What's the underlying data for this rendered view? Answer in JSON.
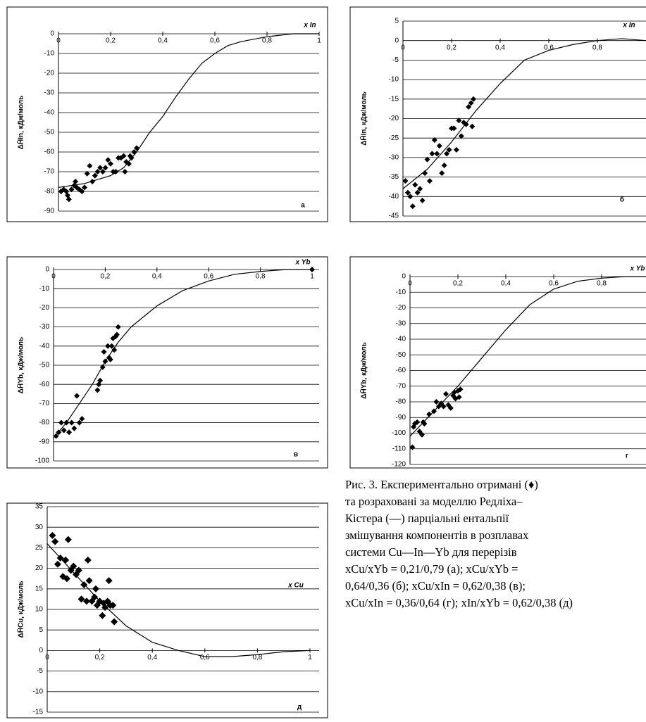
{
  "chart_data": [
    {
      "type": "scatter",
      "ylabel": "ΔH̄In, кДж/моль",
      "xlabel": "x In",
      "panel_label": "а",
      "xlim": [
        0,
        1
      ],
      "ylim": [
        -90,
        0
      ],
      "xticks": [
        0,
        {
          "value": 0.2,
          "label": "0,2"
        },
        {
          "value": 0.4,
          "label": "0,4"
        },
        {
          "value": 0.6,
          "label": "0,6"
        },
        {
          "value": 0.8,
          "label": "0,8"
        },
        1
      ],
      "yticks": [
        0,
        -10,
        -20,
        -30,
        -40,
        -50,
        -60,
        -70,
        -80,
        -90
      ],
      "grid": true,
      "series": [
        {
          "type": "scatter",
          "color": "#000000",
          "x": [
            0.01,
            0.02,
            0.03,
            0.035,
            0.04,
            0.05,
            0.06,
            0.065,
            0.07,
            0.08,
            0.09,
            0.1,
            0.11,
            0.12,
            0.13,
            0.14,
            0.15,
            0.16,
            0.17,
            0.18,
            0.19,
            0.2,
            0.21,
            0.22,
            0.23,
            0.24,
            0.25,
            0.255,
            0.26,
            0.27,
            0.275,
            0.28,
            0.29,
            0.3
          ],
          "values": [
            -80,
            -79,
            -80,
            -82,
            -84,
            -79,
            -77,
            -75,
            -78,
            -79,
            -80,
            -78,
            -71,
            -67,
            -75,
            -72,
            -70,
            -68,
            -70,
            -68,
            -64,
            -66,
            -70,
            -70,
            -63,
            -63,
            -62,
            -70,
            -65,
            -66,
            -62,
            -63,
            -60,
            -58
          ]
        },
        {
          "type": "line",
          "color": "#000000",
          "x": [
            0,
            0.1,
            0.2,
            0.25,
            0.3,
            0.35,
            0.4,
            0.45,
            0.5,
            0.55,
            0.6,
            0.65,
            0.7,
            0.8,
            0.9,
            1
          ],
          "values": [
            -78,
            -76,
            -72,
            -68,
            -60,
            -50,
            -42,
            -32,
            -23,
            -15,
            -10,
            -6,
            -4,
            -1.5,
            0,
            0
          ]
        }
      ]
    },
    {
      "type": "scatter",
      "ylabel": "ΔH̄In, кДж/моль",
      "xlabel": "x In",
      "panel_label": "б",
      "xlim": [
        0,
        1
      ],
      "ylim": [
        -45,
        5
      ],
      "xticks": [
        0,
        {
          "value": 0.2,
          "label": "0,2"
        },
        {
          "value": 0.4,
          "label": "0,4"
        },
        {
          "value": 0.6,
          "label": "0,6"
        },
        {
          "value": 0.8,
          "label": "0,8"
        }
      ],
      "yticks": [
        5,
        0,
        -5,
        -10,
        -15,
        -20,
        -25,
        -30,
        -35,
        -40,
        -45
      ],
      "grid": true,
      "series": [
        {
          "type": "scatter",
          "color": "#000000",
          "x": [
            0.01,
            0.02,
            0.03,
            0.04,
            0.05,
            0.06,
            0.07,
            0.08,
            0.09,
            0.1,
            0.11,
            0.12,
            0.13,
            0.14,
            0.15,
            0.16,
            0.17,
            0.18,
            0.19,
            0.2,
            0.21,
            0.22,
            0.23,
            0.24,
            0.25,
            0.26,
            0.27,
            0.28,
            0.29,
            0.285
          ],
          "values": [
            -36,
            -39,
            -40,
            -42.5,
            -37,
            -39,
            -38,
            -41,
            -34,
            -30.5,
            -36,
            -29,
            -25.5,
            -29,
            -27,
            -34,
            -32,
            -29,
            -28,
            -22.5,
            -22.5,
            -28,
            -20.5,
            -24.5,
            -21,
            -21.5,
            -17,
            -16,
            -15,
            -22
          ]
        },
        {
          "type": "line",
          "color": "#000000",
          "x": [
            0,
            0.1,
            0.2,
            0.3,
            0.4,
            0.5,
            0.6,
            0.7,
            0.8,
            0.9,
            1
          ],
          "values": [
            -38,
            -33,
            -26,
            -18,
            -11,
            -5,
            -2.5,
            -1,
            0,
            0.5,
            0
          ]
        }
      ]
    },
    {
      "type": "scatter",
      "ylabel": "ΔH̄Yb, кДж/моль",
      "xlabel": "x Yb",
      "panel_label": "в",
      "xlim": [
        0,
        1
      ],
      "ylim": [
        -100,
        0
      ],
      "xticks": [
        0,
        {
          "value": 0.2,
          "label": "0,2"
        },
        {
          "value": 0.4,
          "label": "0,4"
        },
        {
          "value": 0.6,
          "label": "0,6"
        },
        {
          "value": 0.8,
          "label": "0,8"
        },
        1
      ],
      "yticks": [
        0,
        -10,
        -20,
        -30,
        -40,
        -50,
        -60,
        -70,
        -80,
        -90,
        -100
      ],
      "grid": true,
      "series": [
        {
          "type": "scatter",
          "color": "#000000",
          "x": [
            0.01,
            0.02,
            0.03,
            0.04,
            0.05,
            0.06,
            0.07,
            0.08,
            0.09,
            0.1,
            0.11,
            0.17,
            0.175,
            0.18,
            0.19,
            0.195,
            0.2,
            0.21,
            0.215,
            0.22,
            0.225,
            0.23,
            0.235,
            0.24,
            0.245,
            0.25,
            1
          ],
          "values": [
            -87,
            -85,
            -80,
            -84,
            -80,
            -85,
            -80,
            -83,
            -66,
            -80,
            -78,
            -63,
            -60,
            -58,
            -51,
            -43,
            -48,
            -40,
            -46,
            -47,
            -40,
            -36,
            -42,
            -35,
            -34,
            -30,
            0
          ]
        },
        {
          "type": "line",
          "color": "#000000",
          "x": [
            0,
            0.05,
            0.1,
            0.15,
            0.2,
            0.25,
            0.3,
            0.4,
            0.5,
            0.6,
            0.7,
            0.8,
            0.9,
            1
          ],
          "values": [
            -88,
            -80,
            -70,
            -60,
            -48,
            -38,
            -30,
            -19,
            -11,
            -6,
            -2.5,
            -1,
            0,
            0
          ]
        }
      ]
    },
    {
      "type": "scatter",
      "ylabel": "ΔH̄Yb, кДж/моль",
      "xlabel": "x Yb",
      "panel_label": "г",
      "xlim": [
        0,
        1
      ],
      "ylim": [
        -120,
        0
      ],
      "xticks": [
        0,
        {
          "value": 0.2,
          "label": "0,2"
        },
        {
          "value": 0.4,
          "label": "0,4"
        },
        {
          "value": 0.6,
          "label": "0,6"
        },
        {
          "value": 0.8,
          "label": "0,8"
        }
      ],
      "yticks": [
        0,
        -10,
        -20,
        -30,
        -40,
        -50,
        -60,
        -70,
        -80,
        -90,
        -100,
        -110,
        -120
      ],
      "grid": true,
      "series": [
        {
          "type": "scatter",
          "color": "#000000",
          "x": [
            0.01,
            0.015,
            0.02,
            0.03,
            0.04,
            0.05,
            0.055,
            0.06,
            0.08,
            0.1,
            0.11,
            0.12,
            0.13,
            0.14,
            0.15,
            0.16,
            0.17,
            0.18,
            0.185,
            0.19,
            0.2,
            0.21,
            0.205
          ],
          "values": [
            -109,
            -96,
            -94,
            -93,
            -99,
            -101,
            -93,
            -94,
            -88,
            -86,
            -80,
            -83,
            -81,
            -83,
            -75,
            -82,
            -84,
            -76,
            -74,
            -78,
            -73,
            -72,
            -77
          ]
        },
        {
          "type": "line",
          "color": "#000000",
          "x": [
            0,
            0.1,
            0.2,
            0.3,
            0.4,
            0.5,
            0.6,
            0.7,
            0.8,
            0.9,
            1
          ],
          "values": [
            -102,
            -86,
            -70,
            -52,
            -34,
            -18,
            -8,
            -3,
            -1,
            0,
            0
          ]
        }
      ]
    },
    {
      "type": "scatter",
      "ylabel": "ΔH̄Cu, кДж/моль",
      "xlabel": "x Cu",
      "panel_label": "д",
      "xlim": [
        0,
        1
      ],
      "ylim": [
        -15,
        35
      ],
      "xticks": [
        0,
        {
          "value": 0.2,
          "label": "0,2"
        },
        {
          "value": 0.4,
          "label": "0,4"
        },
        {
          "value": 0.6,
          "label": "0,6"
        },
        {
          "value": 0.8,
          "label": "0,8"
        },
        1
      ],
      "yticks": [
        35,
        30,
        25,
        20,
        15,
        10,
        5,
        0,
        -5,
        -10,
        -15
      ],
      "grid": true,
      "series": [
        {
          "type": "scatter",
          "color": "#000000",
          "x": [
            0.02,
            0.03,
            0.04,
            0.05,
            0.06,
            0.07,
            0.075,
            0.08,
            0.09,
            0.1,
            0.11,
            0.12,
            0.13,
            0.14,
            0.15,
            0.155,
            0.16,
            0.17,
            0.18,
            0.185,
            0.19,
            0.2,
            0.21,
            0.215,
            0.22,
            0.23,
            0.235,
            0.24,
            0.25,
            0.255
          ],
          "values": [
            28,
            26.5,
            21,
            22.5,
            18,
            22,
            17.5,
            27,
            19.5,
            20.5,
            18.5,
            19.5,
            12.5,
            16,
            12,
            22,
            17,
            12,
            13,
            15,
            11,
            12,
            8.5,
            11.5,
            10.5,
            12,
            17,
            11,
            11,
            7
          ]
        },
        {
          "type": "line",
          "color": "#000000",
          "x": [
            0,
            0.1,
            0.2,
            0.3,
            0.4,
            0.5,
            0.6,
            0.7,
            0.8,
            0.9,
            1
          ],
          "values": [
            26,
            19,
            12,
            6,
            2,
            0,
            -1.5,
            -1.5,
            -1,
            -0.3,
            0
          ]
        }
      ]
    }
  ],
  "caption": [
    "Рис. 3. Експериментально отримані (♦)",
    "та розраховані за моделлю Редліха–",
    "Кістера (—) парціальні ентальпії",
    "змішування компонентів в розплавах",
    "системи Cu—In—Yb для перерізів",
    "xCu/xYb = 0,21/0,79 (а); xCu/xYb =",
    "0,64/0,36 (б); xCu/xIn = 0,62/0,38 (в);",
    "xCu/xIn = 0,36/0,64 (г); xIn/xYb = 0,62/0,38 (д)"
  ]
}
